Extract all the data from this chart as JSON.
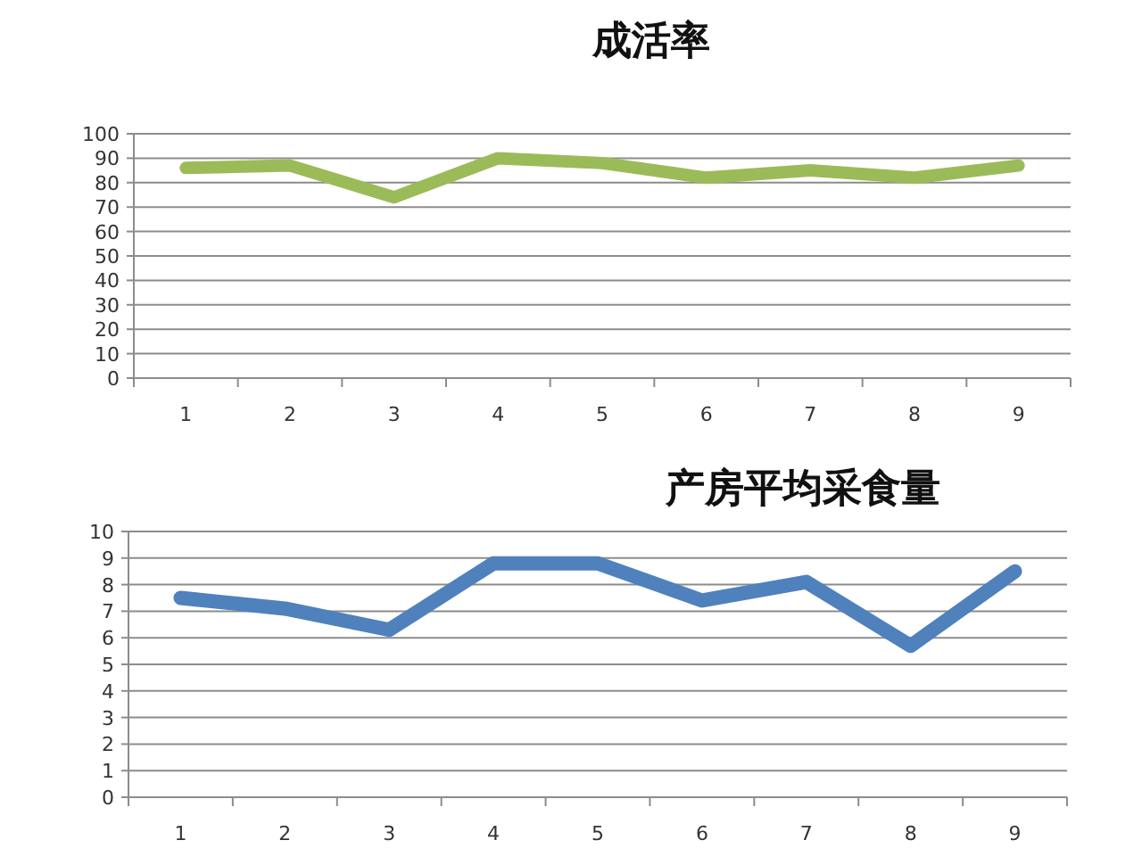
{
  "chart_data": [
    {
      "type": "line",
      "title": "成活率",
      "categories": [
        "1",
        "2",
        "3",
        "4",
        "5",
        "6",
        "7",
        "8",
        "9"
      ],
      "series": [
        {
          "color": "#9bbb59",
          "values": [
            86,
            87,
            74,
            90,
            88,
            82,
            85,
            82,
            87
          ]
        }
      ],
      "ylim": [
        0,
        100
      ],
      "yticks": [
        0,
        10,
        20,
        30,
        40,
        50,
        60,
        70,
        80,
        90,
        100
      ],
      "grid": "y"
    },
    {
      "type": "line",
      "title": "产房平均采食量",
      "categories": [
        "1",
        "2",
        "3",
        "4",
        "5",
        "6",
        "7",
        "8",
        "9"
      ],
      "series": [
        {
          "color": "#4f81bd",
          "values": [
            7.5,
            7.1,
            6.3,
            8.8,
            8.8,
            7.4,
            8.1,
            5.7,
            8.5
          ]
        }
      ],
      "ylim": [
        0,
        10
      ],
      "yticks": [
        0,
        1,
        2,
        3,
        4,
        5,
        6,
        7,
        8,
        9,
        10
      ],
      "grid": "y"
    }
  ]
}
